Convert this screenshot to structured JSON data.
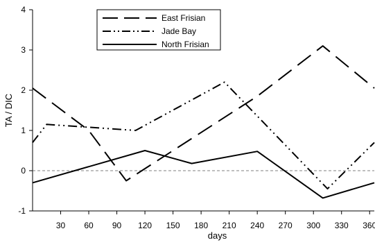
{
  "chart_data": {
    "type": "line",
    "xlabel": "days",
    "ylabel": "TA / DIC",
    "xlim": [
      0,
      365
    ],
    "ylim": [
      -1,
      4
    ],
    "xticks": [
      30,
      60,
      90,
      120,
      150,
      180,
      210,
      240,
      270,
      300,
      330,
      360
    ],
    "yticks": [
      -1,
      0,
      1,
      2,
      3,
      4
    ],
    "reference_line": {
      "y": 0,
      "style": "dashed"
    },
    "grid": false,
    "legend_position": "top-left",
    "series": [
      {
        "name": "East Frisian",
        "line_style": "long-dash",
        "x": [
          0,
          60,
          100,
          240,
          310,
          365
        ],
        "y": [
          2.05,
          1.0,
          -0.25,
          1.85,
          3.1,
          2.05
        ]
      },
      {
        "name": "Jade Bay",
        "line_style": "dash-dot-dot",
        "x": [
          0,
          15,
          60,
          110,
          205,
          315,
          365
        ],
        "y": [
          0.7,
          1.15,
          1.08,
          1.0,
          2.2,
          -0.45,
          0.7
        ]
      },
      {
        "name": "North Frisian",
        "line_style": "solid",
        "x": [
          0,
          120,
          170,
          240,
          310,
          365
        ],
        "y": [
          -0.3,
          0.5,
          0.18,
          0.48,
          -0.68,
          -0.3
        ]
      }
    ]
  }
}
